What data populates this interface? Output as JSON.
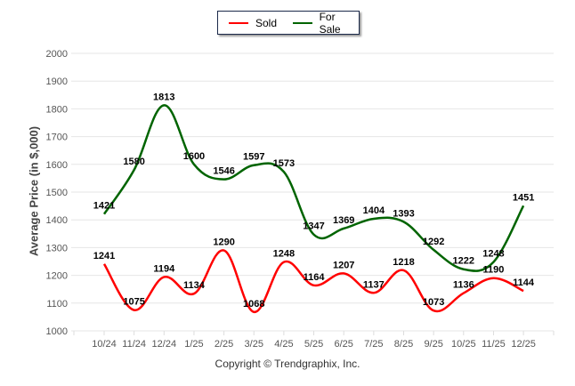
{
  "chart_data": {
    "type": "line",
    "title": "",
    "xlabel": "",
    "ylabel": "Average Price (in $,000)",
    "ylim": [
      1000,
      2000
    ],
    "yticks": [
      1000,
      1100,
      1200,
      1300,
      1400,
      1500,
      1600,
      1700,
      1800,
      1900,
      2000
    ],
    "categories": [
      "10/24",
      "11/24",
      "12/24",
      "1/25",
      "2/25",
      "3/25",
      "4/25",
      "5/25",
      "6/25",
      "7/25",
      "8/25",
      "9/25",
      "10/25",
      "11/25",
      "12/25"
    ],
    "grid": true,
    "legend_position": "top-center",
    "series": [
      {
        "name": "Sold",
        "color": "#ff0000",
        "values": [
          1241,
          1075,
          1194,
          1134,
          1290,
          1068,
          1248,
          1164,
          1207,
          1137,
          1218,
          1073,
          1136,
          1190,
          1144
        ]
      },
      {
        "name": "For Sale",
        "color": "#006400",
        "values": [
          1421,
          1580,
          1813,
          1600,
          1546,
          1597,
          1573,
          1347,
          1369,
          1404,
          1393,
          1292,
          1222,
          1248,
          1451
        ]
      }
    ],
    "footer": "Copyright © Trendgraphix, Inc."
  }
}
